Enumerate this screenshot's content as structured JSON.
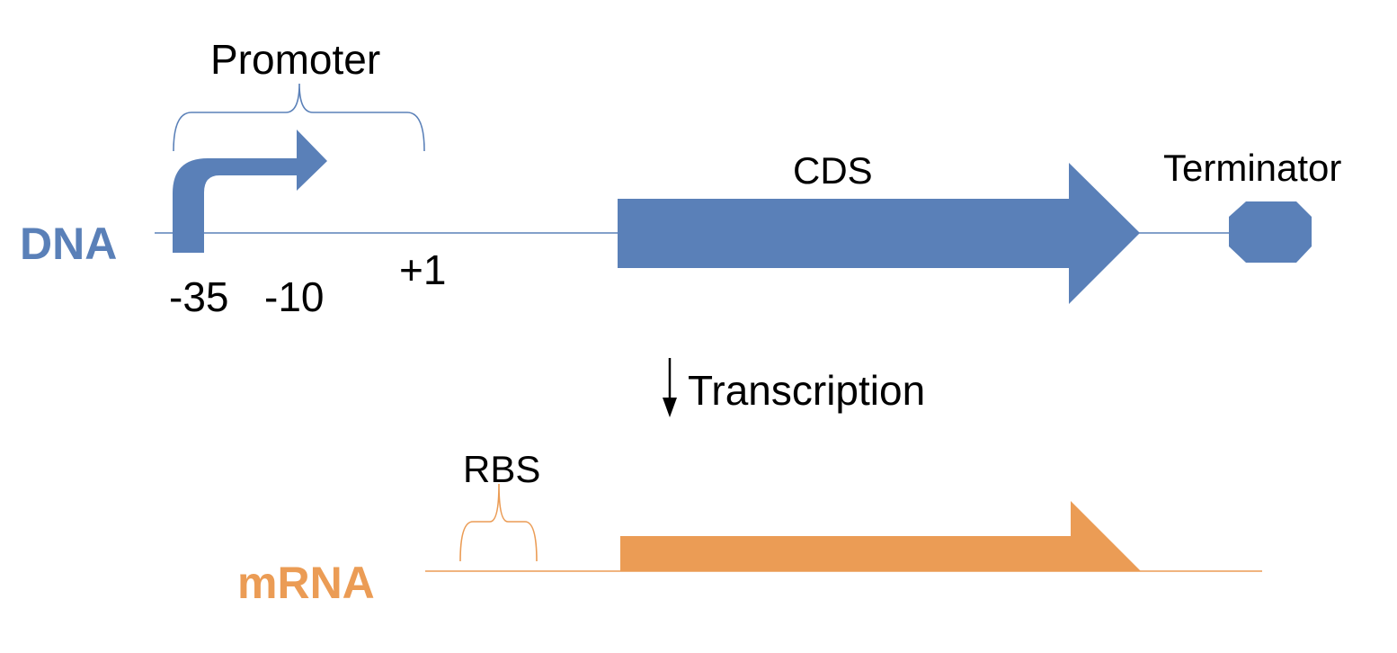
{
  "colors": {
    "dna": "#5A80B8",
    "mrna": "#EB9C55",
    "text": "#000000",
    "background": "#FFFFFF"
  },
  "dna": {
    "strand_label": "DNA",
    "promoter_label": "Promoter",
    "minus35_label": "-35",
    "minus10_label": "-10",
    "plus1_label": "+1",
    "cds_label": "CDS",
    "terminator_label": "Terminator"
  },
  "process": {
    "transcription_label": "Transcription"
  },
  "mrna": {
    "strand_label": "mRNA",
    "rbs_label": "RBS"
  }
}
